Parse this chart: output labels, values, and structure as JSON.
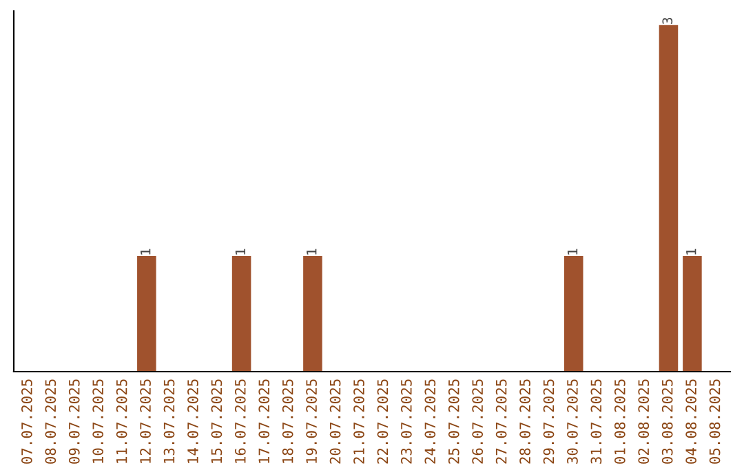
{
  "chart_data": {
    "type": "bar",
    "categories": [
      "07.07.2025",
      "08.07.2025",
      "09.07.2025",
      "10.07.2025",
      "11.07.2025",
      "12.07.2025",
      "13.07.2025",
      "14.07.2025",
      "15.07.2025",
      "16.07.2025",
      "17.07.2025",
      "18.07.2025",
      "19.07.2025",
      "20.07.2025",
      "21.07.2025",
      "22.07.2025",
      "23.07.2025",
      "24.07.2025",
      "25.07.2025",
      "26.07.2025",
      "27.07.2025",
      "28.07.2025",
      "29.07.2025",
      "30.07.2025",
      "31.07.2025",
      "01.08.2025",
      "02.08.2025",
      "03.08.2025",
      "04.08.2025",
      "05.08.2025"
    ],
    "values": [
      0,
      0,
      0,
      0,
      0,
      1,
      0,
      0,
      0,
      1,
      0,
      0,
      1,
      0,
      0,
      0,
      0,
      0,
      0,
      0,
      0,
      0,
      0,
      1,
      0,
      0,
      0,
      3,
      1,
      0
    ],
    "color": "#a0522d",
    "value_labels": [
      null,
      null,
      null,
      null,
      null,
      "1",
      null,
      null,
      null,
      "1",
      null,
      null,
      "1",
      null,
      null,
      null,
      null,
      null,
      null,
      null,
      null,
      null,
      null,
      "1",
      null,
      null,
      null,
      "3",
      "1",
      null
    ],
    "tick_labels": "x",
    "grid": false,
    "legend": false
  }
}
